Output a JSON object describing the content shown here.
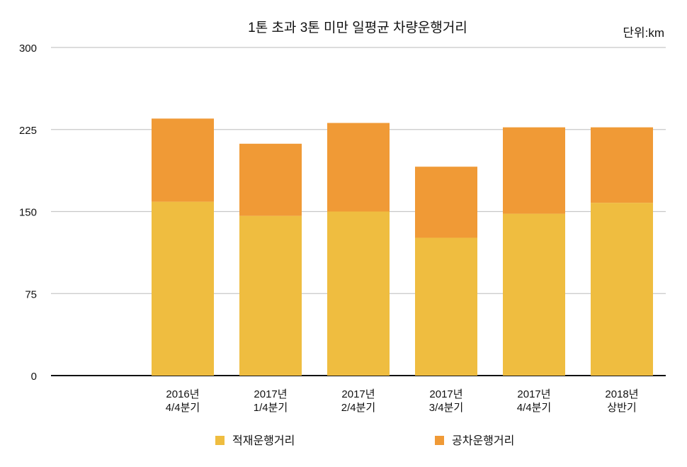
{
  "chart_data": {
    "type": "bar",
    "stacked": true,
    "title": "1톤 초과 3톤 미만 일평균 차량운행거리",
    "unit_label": "단위:km",
    "xlabel": "",
    "ylabel": "",
    "ylim": [
      0,
      300
    ],
    "yticks": [
      0,
      75,
      150,
      225,
      300
    ],
    "grid": true,
    "legend_position": "bottom",
    "categories": [
      [
        "",
        ""
      ],
      [
        "2016년",
        "4/4분기"
      ],
      [
        "2017년",
        "1/4분기"
      ],
      [
        "2017년",
        "2/4분기"
      ],
      [
        "2017년",
        "3/4분기"
      ],
      [
        "2017년",
        "4/4분기"
      ],
      [
        "2018년",
        "상반기"
      ]
    ],
    "series": [
      {
        "name": "적재운행거리",
        "color": "#EFBD40",
        "values": [
          null,
          159,
          146,
          150,
          126,
          148,
          158
        ]
      },
      {
        "name": "공차운행거리",
        "color": "#F09A36",
        "values": [
          null,
          76,
          66,
          81,
          65,
          79,
          69
        ]
      }
    ]
  }
}
